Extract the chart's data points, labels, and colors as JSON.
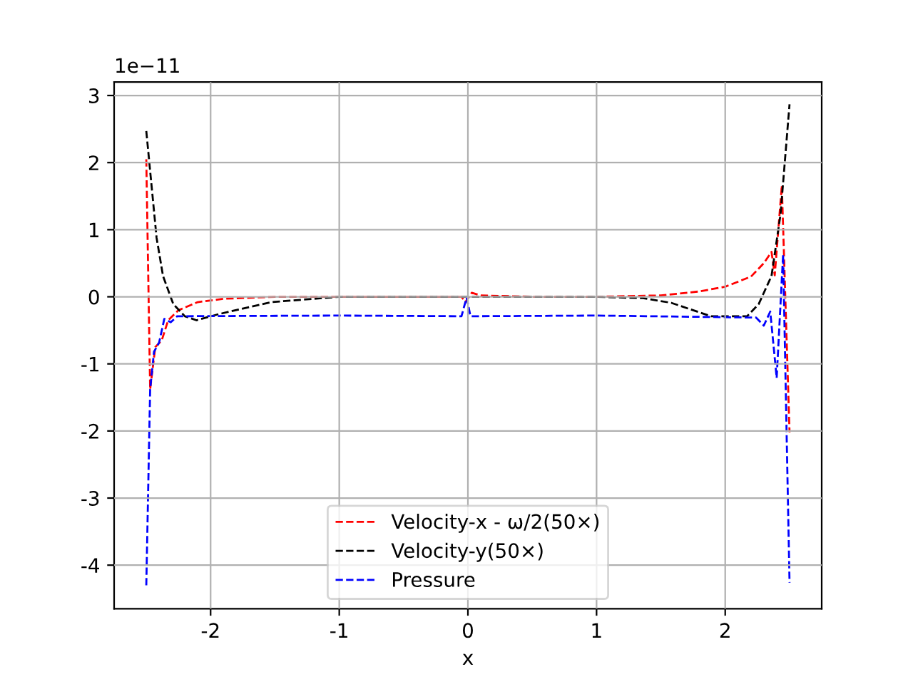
{
  "chart_data": {
    "type": "line",
    "xlabel": "x",
    "annotations": [
      "1e−11"
    ],
    "xlim": [
      -2.75,
      2.75
    ],
    "ylim": [
      -4.65,
      3.2
    ],
    "xticks": [
      -2,
      -1,
      0,
      1,
      2
    ],
    "yticks": [
      -4,
      -3,
      -2,
      -1,
      0,
      1,
      2,
      3
    ],
    "grid": true,
    "legend": "bottom",
    "line_style": "dashed",
    "series": [
      {
        "name": "Velocity-x - ω/2(50×)",
        "color": "#ff0000",
        "x": [
          -2.5,
          -2.47,
          -2.43,
          -2.38,
          -2.33,
          -2.25,
          -2.1,
          -1.9,
          -1.5,
          -1.0,
          -0.5,
          -0.05,
          -0.02,
          0.03,
          0.1,
          0.5,
          1.0,
          1.5,
          1.8,
          2.0,
          2.2,
          2.3,
          2.36,
          2.385,
          2.44,
          2.5
        ],
        "values": [
          2.05,
          -1.38,
          -0.75,
          -0.65,
          -0.35,
          -0.2,
          -0.08,
          -0.03,
          0,
          0,
          0,
          0,
          -0.08,
          0.06,
          0.02,
          0,
          0,
          0.02,
          0.08,
          0.15,
          0.3,
          0.5,
          0.67,
          0.32,
          1.66,
          -2.02
        ]
      },
      {
        "name": "Velocity-y(50×)",
        "color": "#000000",
        "x": [
          -2.5,
          -2.42,
          -2.37,
          -2.29,
          -2.2,
          -2.11,
          -1.94,
          -1.53,
          -1.0,
          0,
          1.0,
          1.36,
          1.58,
          1.89,
          2.0,
          2.17,
          2.26,
          2.36,
          2.43,
          2.5
        ],
        "values": [
          2.47,
          0.88,
          0.31,
          -0.11,
          -0.29,
          -0.35,
          -0.26,
          -0.08,
          0,
          0,
          0,
          -0.02,
          -0.09,
          -0.29,
          -0.29,
          -0.29,
          -0.11,
          0.31,
          1.23,
          2.87
        ]
      },
      {
        "name": "Pressure",
        "color": "#0000ff",
        "x": [
          -2.5,
          -2.47,
          -2.44,
          -2.4,
          -2.36,
          -2.31,
          -2.26,
          -1.0,
          -0.05,
          -0.01,
          0.02,
          1.0,
          2.24,
          2.3,
          2.35,
          2.4,
          2.45,
          2.5
        ],
        "values": [
          -4.3,
          -1.38,
          -0.82,
          -0.68,
          -0.33,
          -0.38,
          -0.29,
          -0.28,
          -0.29,
          -0.01,
          -0.29,
          -0.28,
          -0.31,
          -0.43,
          -0.22,
          -1.21,
          0.63,
          -4.26
        ]
      }
    ]
  }
}
